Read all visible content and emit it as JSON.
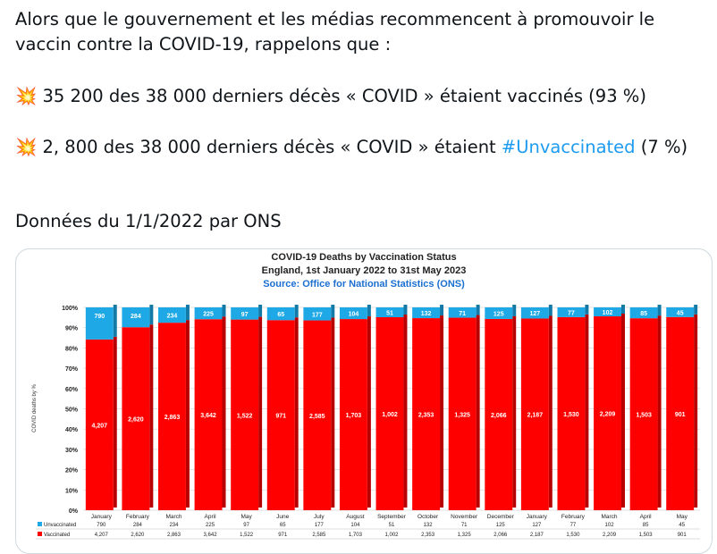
{
  "tweet": {
    "intro": "Alors que le gouvernement et les médias recommencent à promouvoir le vaccin contre la COVID-19, rappelons que :",
    "point1": "💥 35 200 des 38 000 derniers décès « COVID » étaient vaccinés (93 %)",
    "point2_start": "💥 2, 800 des 38 000 derniers décès « COVID » étaient ",
    "point2_hashtag": "#Unvaccinated",
    "point2_end": " (7 %)",
    "source_line": "Données du 1/1/2022 par ONS"
  },
  "chart_data": {
    "type": "stacked_percent_bar",
    "title": "COVID-19 Deaths by Vaccination Status",
    "subtitle": "England, 1st January 2022 to 31st May 2023",
    "source": "Source: Office for National Statistics (ONS)",
    "y_label": "COVID deaths by %",
    "categories": [
      "January",
      "February",
      "March",
      "April",
      "May",
      "June",
      "July",
      "August",
      "September",
      "October",
      "November",
      "December",
      "January",
      "February",
      "March",
      "April",
      "May"
    ],
    "series": [
      {
        "name": "Vaccinated",
        "color": "#ff0000",
        "values": [
          4207,
          2620,
          2863,
          3642,
          1522,
          971,
          2585,
          1703,
          1002,
          2353,
          1325,
          2066,
          2187,
          1530,
          2209,
          1503,
          901
        ],
        "value_labels": [
          "4,207",
          "2,620",
          "2,863",
          "3,642",
          "1,522",
          "971",
          "2,585",
          "1,703",
          "1,002",
          "2,353",
          "1,325",
          "2,066",
          "2,187",
          "1,530",
          "2,209",
          "1,503",
          "901"
        ]
      },
      {
        "name": "Unvaccinated",
        "color": "#1ea9e6",
        "values": [
          790,
          284,
          234,
          225,
          97,
          65,
          177,
          104,
          51,
          132,
          71,
          125,
          127,
          77,
          102,
          85,
          45
        ],
        "value_labels": [
          "790",
          "284",
          "234",
          "225",
          "97",
          "65",
          "177",
          "104",
          "51",
          "132",
          "71",
          "125",
          "127",
          "77",
          "102",
          "85",
          "45"
        ]
      }
    ],
    "ylim": [
      0,
      100
    ],
    "yticks": [
      {
        "value": 0,
        "label": "0%"
      },
      {
        "value": 10,
        "label": "10%"
      },
      {
        "value": 20,
        "label": "20%"
      },
      {
        "value": 30,
        "label": "30%"
      },
      {
        "value": 40,
        "label": "40%"
      },
      {
        "value": 50,
        "label": "50%"
      },
      {
        "value": 60,
        "label": "60%"
      },
      {
        "value": 70,
        "label": "70%"
      },
      {
        "value": 80,
        "label": "80%"
      },
      {
        "value": 90,
        "label": "90%"
      },
      {
        "value": 100,
        "label": "100%"
      }
    ],
    "grid": true
  }
}
